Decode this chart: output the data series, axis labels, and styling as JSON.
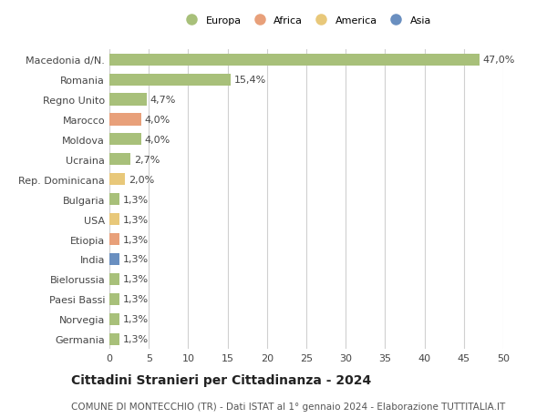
{
  "categories": [
    "Macedonia d/N.",
    "Romania",
    "Regno Unito",
    "Marocco",
    "Moldova",
    "Ucraina",
    "Rep. Dominicana",
    "Bulgaria",
    "USA",
    "Etiopia",
    "India",
    "Bielorussia",
    "Paesi Bassi",
    "Norvegia",
    "Germania"
  ],
  "values": [
    47.0,
    15.4,
    4.7,
    4.0,
    4.0,
    2.7,
    2.0,
    1.3,
    1.3,
    1.3,
    1.3,
    1.3,
    1.3,
    1.3,
    1.3
  ],
  "labels": [
    "47,0%",
    "15,4%",
    "4,7%",
    "4,0%",
    "4,0%",
    "2,7%",
    "2,0%",
    "1,3%",
    "1,3%",
    "1,3%",
    "1,3%",
    "1,3%",
    "1,3%",
    "1,3%",
    "1,3%"
  ],
  "continents": [
    "Europa",
    "Europa",
    "Europa",
    "Africa",
    "Europa",
    "Europa",
    "America",
    "Europa",
    "America",
    "Africa",
    "Asia",
    "Europa",
    "Europa",
    "Europa",
    "Europa"
  ],
  "continent_colors": {
    "Europa": "#a8c07a",
    "Africa": "#e8a07a",
    "America": "#e8c87a",
    "Asia": "#6a8fc0"
  },
  "legend_order": [
    "Europa",
    "Africa",
    "America",
    "Asia"
  ],
  "title": "Cittadini Stranieri per Cittadinanza - 2024",
  "subtitle": "COMUNE DI MONTECCHIO (TR) - Dati ISTAT al 1° gennaio 2024 - Elaborazione TUTTITALIA.IT",
  "xlim": [
    0,
    50
  ],
  "xticks": [
    0,
    5,
    10,
    15,
    20,
    25,
    30,
    35,
    40,
    45,
    50
  ],
  "bg_color": "#ffffff",
  "grid_color": "#d0d0d0",
  "bar_height": 0.6,
  "label_fontsize": 8,
  "tick_fontsize": 8,
  "title_fontsize": 10,
  "subtitle_fontsize": 7.5
}
